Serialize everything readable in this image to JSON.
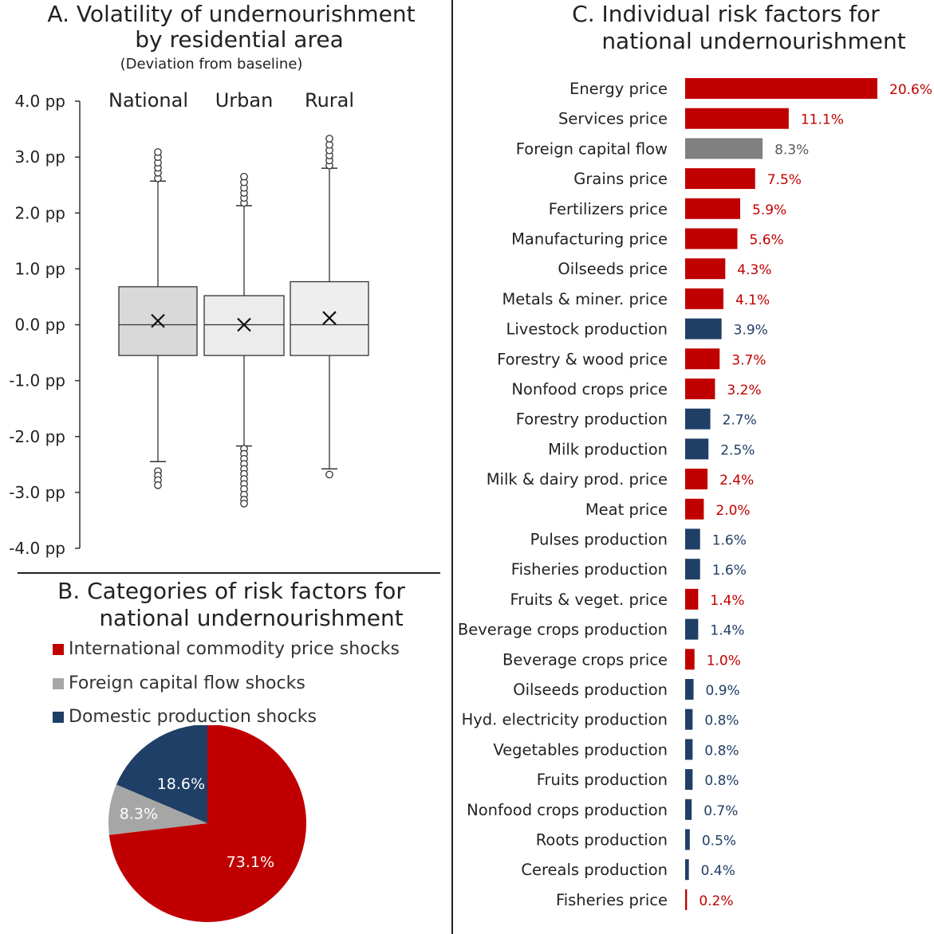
{
  "panel_a": {
    "title_line1": "A.  Volatility of undernourishment",
    "title_line2": "by residential area",
    "subtitle": "(Deviation from baseline)"
  },
  "panel_b": {
    "title_line1": "B.  Categories of risk factors for",
    "title_line2": "national undernourishment",
    "legend": [
      {
        "label": "International commodity price shocks",
        "color": "#c00000"
      },
      {
        "label": "Foreign capital flow shocks",
        "color": "#a6a6a6"
      },
      {
        "label": "Domestic production shocks",
        "color": "#1f3f66"
      }
    ]
  },
  "panel_c": {
    "title_line1": "C.  Individual risk factors for",
    "title_line2": "national undernourishment"
  },
  "chart_data": [
    {
      "type": "box",
      "title": "A.  Volatility of undernourishment by residential area",
      "subtitle": "(Deviation from baseline)",
      "categories": [
        "National",
        "Urban",
        "Rural"
      ],
      "ylim": [
        -4.0,
        4.0
      ],
      "yticks": [
        "4.0 pp",
        "3.0 pp",
        "2.0 pp",
        "1.0 pp",
        "0.0 pp",
        "-1.0 pp",
        "-2.0 pp",
        "-3.0 pp",
        "-4.0 pp"
      ],
      "boxes": [
        {
          "name": "National",
          "q1": -0.55,
          "median": 0.0,
          "q3": 0.68,
          "mean": 0.07,
          "whisker_low": -2.45,
          "whisker_high": 2.57,
          "outliers_low": [
            -2.62,
            -2.7,
            -2.78,
            -2.87
          ],
          "outliers_high": [
            2.62,
            2.72,
            2.81,
            2.9,
            3.0,
            3.09
          ],
          "fill": "#d9d9d9"
        },
        {
          "name": "Urban",
          "q1": -0.55,
          "median": 0.0,
          "q3": 0.52,
          "mean": 0.0,
          "whisker_low": -2.17,
          "whisker_high": 2.13,
          "outliers_low": [
            -2.22,
            -2.31,
            -2.4,
            -2.49,
            -2.58,
            -2.67,
            -2.76,
            -2.85,
            -2.94,
            -3.04,
            -3.13,
            -3.2
          ],
          "outliers_high": [
            2.18,
            2.27,
            2.36,
            2.45,
            2.55,
            2.65
          ],
          "fill": "#ececec"
        },
        {
          "name": "Rural",
          "q1": -0.55,
          "median": 0.0,
          "q3": 0.77,
          "mean": 0.12,
          "whisker_low": -2.58,
          "whisker_high": 2.8,
          "outliers_low": [
            -2.68
          ],
          "outliers_high": [
            2.85,
            2.94,
            3.03,
            3.12,
            3.22,
            3.33
          ],
          "fill": "#eeeeee"
        }
      ]
    },
    {
      "type": "pie",
      "title": "B.  Categories of risk factors for national undernourishment",
      "slices": [
        {
          "name": "International commodity price shocks",
          "value": 73.1,
          "label": "73.1%",
          "color": "#c00000"
        },
        {
          "name": "Foreign capital flow shocks",
          "value": 8.3,
          "label": "8.3%",
          "color": "#a6a6a6"
        },
        {
          "name": "Domestic production shocks",
          "value": 18.6,
          "label": "18.6%",
          "color": "#1f3f66"
        }
      ]
    },
    {
      "type": "bar",
      "orientation": "horizontal",
      "title": "C.  Individual risk factors for national undernourishment",
      "xlim": [
        0,
        20.6
      ],
      "bars": [
        {
          "label": "Energy price",
          "value": 20.6,
          "text": "20.6%",
          "group": "price"
        },
        {
          "label": "Services price",
          "value": 11.1,
          "text": "11.1%",
          "group": "price"
        },
        {
          "label": "Foreign capital flow",
          "value": 8.3,
          "text": "8.3%",
          "group": "capital"
        },
        {
          "label": "Grains price",
          "value": 7.5,
          "text": "7.5%",
          "group": "price"
        },
        {
          "label": "Fertilizers price",
          "value": 5.9,
          "text": "5.9%",
          "group": "price"
        },
        {
          "label": "Manufacturing price",
          "value": 5.6,
          "text": "5.6%",
          "group": "price"
        },
        {
          "label": "Oilseeds price",
          "value": 4.3,
          "text": "4.3%",
          "group": "price"
        },
        {
          "label": "Metals & miner. price",
          "value": 4.1,
          "text": "4.1%",
          "group": "price"
        },
        {
          "label": "Livestock production",
          "value": 3.9,
          "text": "3.9%",
          "group": "production"
        },
        {
          "label": "Forestry & wood price",
          "value": 3.7,
          "text": "3.7%",
          "group": "price"
        },
        {
          "label": "Nonfood crops price",
          "value": 3.2,
          "text": "3.2%",
          "group": "price"
        },
        {
          "label": "Forestry production",
          "value": 2.7,
          "text": "2.7%",
          "group": "production"
        },
        {
          "label": "Milk production",
          "value": 2.5,
          "text": "2.5%",
          "group": "production"
        },
        {
          "label": "Milk & dairy prod. price",
          "value": 2.4,
          "text": "2.4%",
          "group": "price"
        },
        {
          "label": "Meat price",
          "value": 2.0,
          "text": "2.0%",
          "group": "price"
        },
        {
          "label": "Pulses production",
          "value": 1.6,
          "text": "1.6%",
          "group": "production"
        },
        {
          "label": "Fisheries production",
          "value": 1.6,
          "text": "1.6%",
          "group": "production"
        },
        {
          "label": "Fruits & veget. price",
          "value": 1.4,
          "text": "1.4%",
          "group": "price"
        },
        {
          "label": "Beverage crops production",
          "value": 1.4,
          "text": "1.4%",
          "group": "production"
        },
        {
          "label": "Beverage crops price",
          "value": 1.0,
          "text": "1.0%",
          "group": "price"
        },
        {
          "label": "Oilseeds production",
          "value": 0.9,
          "text": "0.9%",
          "group": "production"
        },
        {
          "label": "Hyd. electricity production",
          "value": 0.8,
          "text": "0.8%",
          "group": "production"
        },
        {
          "label": "Vegetables production",
          "value": 0.8,
          "text": "0.8%",
          "group": "production"
        },
        {
          "label": "Fruits production",
          "value": 0.8,
          "text": "0.8%",
          "group": "production"
        },
        {
          "label": "Nonfood crops production",
          "value": 0.7,
          "text": "0.7%",
          "group": "production"
        },
        {
          "label": "Roots production",
          "value": 0.5,
          "text": "0.5%",
          "group": "production"
        },
        {
          "label": "Cereals production",
          "value": 0.4,
          "text": "0.4%",
          "group": "production"
        },
        {
          "label": "Fisheries price",
          "value": 0.2,
          "text": "0.2%",
          "group": "price"
        }
      ],
      "group_colors": {
        "price": "#c00000",
        "capital": "#808080",
        "production": "#1f3f66"
      },
      "label_colors": {
        "price": "#c00000",
        "capital": "#595959",
        "production": "#1f3f66"
      }
    }
  ]
}
